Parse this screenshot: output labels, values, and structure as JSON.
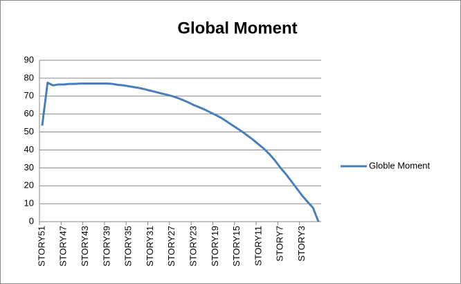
{
  "chart_data": {
    "type": "line",
    "title": "Global Moment",
    "categories": [
      "STORY51",
      null,
      null,
      null,
      "STORY47",
      null,
      null,
      null,
      "STORY43",
      null,
      null,
      null,
      "STORY39",
      null,
      null,
      null,
      "STORY35",
      null,
      null,
      null,
      "STORY31",
      null,
      null,
      null,
      "STORY27",
      null,
      null,
      null,
      "STORY23",
      null,
      null,
      null,
      "STORY19",
      null,
      null,
      null,
      "STORY15",
      null,
      null,
      null,
      "STORY11",
      null,
      null,
      null,
      "STORY7",
      null,
      null,
      null,
      "STORY3",
      null,
      null,
      null
    ],
    "series": [
      {
        "name": "Globle Moment",
        "color": "#4a7ebb",
        "values": [
          53.5,
          77.5,
          76,
          76.5,
          76.5,
          76.8,
          76.8,
          77,
          77,
          77,
          77,
          77,
          77,
          76.8,
          76.3,
          76,
          75.5,
          75,
          74.5,
          73.8,
          73,
          72.3,
          71.5,
          70.8,
          70,
          69,
          67.8,
          66.5,
          65,
          63.8,
          62.5,
          61,
          59.5,
          58,
          56,
          54,
          52,
          50,
          47.8,
          45.5,
          43,
          40.5,
          37.5,
          34,
          30,
          26.5,
          22.5,
          18.5,
          14.5,
          11,
          7.7,
          0
        ]
      }
    ],
    "ylim": [
      0,
      90
    ],
    "yticks": [
      0,
      10,
      20,
      30,
      40,
      50,
      60,
      70,
      80,
      90
    ],
    "grid": true,
    "legend": "right"
  }
}
